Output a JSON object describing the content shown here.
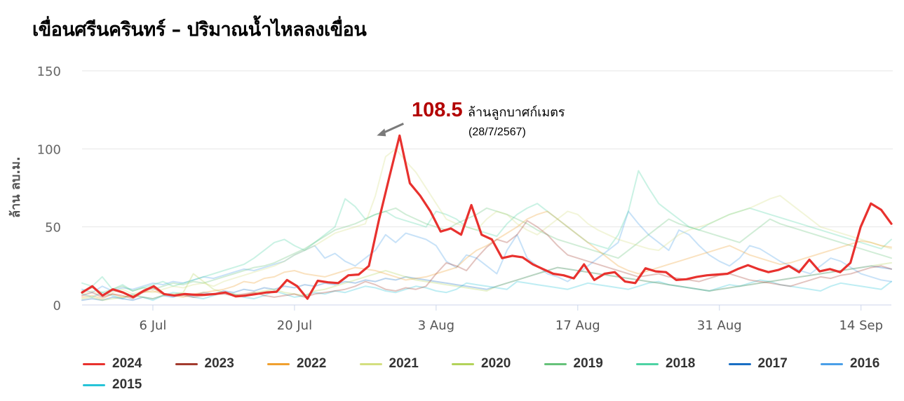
{
  "title": "เขื่อนศรีนครินทร์ – ปริมาณน้ำไหลลงเขื่อน",
  "chart_data": {
    "type": "line",
    "title": "เขื่อนศรีนครินทร์ – ปริมาณน้ำไหลลงเขื่อน",
    "xlabel": "",
    "ylabel": "ล้าน ลบ.ม.",
    "ylim": [
      0,
      150
    ],
    "yticks": [
      0,
      50,
      100,
      150
    ],
    "x_start": "2024-06-29",
    "x_end": "2024-09-17",
    "xticks": [
      {
        "label": "6 Jul",
        "date": "2024-07-06"
      },
      {
        "label": "20 Jul",
        "date": "2024-07-20"
      },
      {
        "label": "3 Aug",
        "date": "2024-08-03"
      },
      {
        "label": "17 Aug",
        "date": "2024-08-17"
      },
      {
        "label": "31 Aug",
        "date": "2024-08-31"
      },
      {
        "label": "14 Sep",
        "date": "2024-09-14"
      }
    ],
    "grid": true,
    "legend_position": "bottom",
    "annotation": {
      "value": "108.5",
      "unit": "ล้านลูกบาศก์เมตร",
      "date": "(28/7/2567)",
      "x": "2024-07-28",
      "y": 108.5
    },
    "series": [
      {
        "name": "2024",
        "color": "#e8312e",
        "values": [
          8,
          12,
          6,
          10,
          8,
          5,
          9,
          12,
          7,
          6,
          7,
          6.5,
          6.5,
          7,
          8,
          5.5,
          6,
          7,
          8,
          8.5,
          16,
          12,
          4,
          15.5,
          14.5,
          14,
          19,
          19.5,
          25,
          55,
          82,
          108.5,
          78,
          70,
          60,
          47,
          49,
          45,
          64,
          45,
          42,
          30,
          31.5,
          30.5,
          26,
          23,
          20,
          19,
          17,
          26,
          16,
          20,
          21,
          15,
          14,
          23.5,
          21.5,
          21,
          16,
          16.5,
          18,
          19,
          19.5,
          20,
          23,
          25.5,
          23,
          21,
          22.5,
          25,
          21,
          29,
          21.5,
          23,
          21,
          27,
          50,
          65,
          61,
          52
        ]
      },
      {
        "name": "2023",
        "color": "#a33b2f",
        "values": [
          6,
          8,
          5,
          7,
          6,
          4,
          8,
          11,
          7,
          6,
          6,
          5,
          6,
          7,
          7,
          6,
          7,
          8,
          6,
          5,
          6,
          7,
          5,
          7,
          8,
          9,
          10,
          12,
          15,
          13,
          10,
          9,
          11,
          10,
          12,
          20,
          27,
          25,
          22,
          30,
          37,
          42,
          40,
          45,
          54,
          50,
          45,
          38,
          32,
          30,
          28,
          26,
          24,
          22,
          20,
          18,
          19,
          20,
          18,
          17,
          16,
          15,
          17,
          19,
          20,
          18,
          16,
          15,
          14,
          13,
          12,
          14,
          16,
          18,
          17,
          19,
          20,
          22,
          24,
          25,
          23
        ]
      },
      {
        "name": "2022",
        "color": "#f0a030",
        "values": [
          5,
          6,
          4,
          7,
          5,
          6,
          8,
          9,
          7,
          6,
          5,
          7,
          8,
          9,
          10,
          12,
          15,
          14,
          17,
          18,
          21,
          22,
          20,
          19,
          18,
          20,
          22,
          24,
          23,
          22,
          20,
          18,
          16,
          17,
          18,
          20,
          22,
          24,
          30,
          35,
          38,
          42,
          46,
          50,
          55,
          58,
          60,
          55,
          50,
          45,
          40,
          35,
          30,
          25,
          22,
          20,
          22,
          24,
          26,
          28,
          30,
          32,
          34,
          36,
          38,
          35,
          32,
          30,
          28,
          26,
          27,
          29,
          31,
          33,
          35,
          37,
          39,
          41,
          40,
          38,
          37
        ]
      },
      {
        "name": "2021",
        "color": "#d4df80",
        "values": [
          7,
          9,
          6,
          8,
          10,
          7,
          9,
          8,
          10,
          12,
          11,
          13,
          14,
          12,
          15,
          17,
          19,
          21,
          23,
          25,
          28,
          32,
          35,
          38,
          42,
          46,
          48,
          50,
          52,
          70,
          95,
          100,
          92,
          85,
          75,
          65,
          55,
          52,
          50,
          48,
          55,
          60,
          58,
          52,
          48,
          45,
          50,
          55,
          60,
          58,
          52,
          48,
          45,
          42,
          40,
          38,
          36,
          35,
          40,
          45,
          48,
          50,
          52,
          55,
          58,
          60,
          62,
          65,
          68,
          70,
          65,
          60,
          55,
          50,
          48,
          46,
          44,
          42,
          40,
          38,
          36
        ]
      },
      {
        "name": "2020",
        "color": "#b3d35a",
        "values": [
          4,
          5,
          3,
          4,
          5,
          6,
          5,
          4,
          6,
          7,
          8,
          20,
          15,
          10,
          8,
          7,
          6,
          8,
          9,
          10,
          8,
          7,
          6,
          9,
          10,
          12,
          14,
          16,
          18,
          20,
          22,
          20,
          18,
          16,
          15,
          14,
          13,
          12,
          11,
          10,
          9,
          12,
          14,
          16,
          18,
          20,
          22,
          24,
          23,
          22,
          21,
          20,
          19,
          18,
          17,
          16,
          15,
          14,
          13,
          12,
          11,
          10,
          9,
          10,
          11,
          12,
          13,
          14,
          15,
          16,
          17,
          18,
          19,
          20,
          21,
          22,
          23,
          24,
          25,
          26,
          27
        ]
      },
      {
        "name": "2019",
        "color": "#66c27a",
        "values": [
          9,
          11,
          8,
          10,
          12,
          9,
          11,
          10,
          12,
          14,
          13,
          15,
          14,
          16,
          18,
          20,
          22,
          24,
          25,
          27,
          30,
          33,
          36,
          40,
          44,
          48,
          50,
          52,
          55,
          58,
          60,
          62,
          58,
          55,
          52,
          50,
          48,
          52,
          55,
          58,
          62,
          60,
          58,
          55,
          52,
          48,
          45,
          42,
          40,
          38,
          36,
          34,
          32,
          30,
          35,
          40,
          45,
          50,
          55,
          52,
          50,
          48,
          46,
          44,
          42,
          40,
          45,
          50,
          55,
          52,
          50,
          48,
          46,
          44,
          42,
          40,
          38,
          36,
          34,
          32,
          30
        ]
      },
      {
        "name": "2018",
        "color": "#4ed3a4",
        "values": [
          14,
          12,
          18,
          10,
          13,
          9,
          11,
          13,
          15,
          12,
          14,
          16,
          18,
          20,
          22,
          24,
          26,
          30,
          35,
          40,
          42,
          38,
          35,
          40,
          45,
          50,
          68,
          63,
          55,
          58,
          60,
          56,
          54,
          52,
          50,
          60,
          58,
          55,
          50,
          48,
          46,
          44,
          52,
          58,
          62,
          65,
          60,
          55,
          50,
          45,
          40,
          38,
          36,
          45,
          60,
          86,
          75,
          65,
          60,
          55,
          50,
          48,
          52,
          55,
          58,
          60,
          62,
          60,
          58,
          56,
          54,
          52,
          50,
          48,
          46,
          44,
          42,
          40,
          38,
          36,
          42
        ]
      },
      {
        "name": "2017",
        "color": "#1a6fc4",
        "values": [
          3,
          4,
          3,
          5,
          4,
          3,
          5,
          4,
          6,
          5,
          7,
          6,
          8,
          7,
          9,
          8,
          10,
          9,
          11,
          10,
          12,
          11,
          13,
          12,
          14,
          13,
          15,
          14,
          16,
          15,
          17,
          16,
          18,
          17,
          16,
          15,
          14,
          13,
          12,
          11,
          10,
          12,
          14,
          16,
          18,
          20,
          22,
          24,
          23,
          22,
          21,
          20,
          19,
          18,
          17,
          16,
          15,
          14,
          13,
          12,
          11,
          10,
          9,
          10,
          11,
          12,
          13,
          14,
          15,
          16,
          17,
          18,
          19,
          20,
          21,
          22,
          23,
          24,
          25,
          24,
          23
        ]
      },
      {
        "name": "2016",
        "color": "#4a9fe8",
        "values": [
          10,
          8,
          12,
          9,
          11,
          10,
          12,
          14,
          13,
          15,
          14,
          16,
          18,
          17,
          19,
          21,
          23,
          22,
          24,
          26,
          28,
          32,
          35,
          38,
          30,
          33,
          28,
          25,
          30,
          35,
          45,
          40,
          46,
          44,
          42,
          38,
          28,
          24,
          32,
          30,
          25,
          20,
          35,
          45,
          30,
          25,
          20,
          18,
          15,
          20,
          25,
          30,
          35,
          40,
          60,
          52,
          45,
          40,
          35,
          48,
          45,
          38,
          32,
          28,
          25,
          30,
          38,
          36,
          32,
          28,
          25,
          22,
          20,
          25,
          30,
          28,
          24,
          20,
          18,
          16,
          15
        ]
      },
      {
        "name": "2015",
        "color": "#27c4d8",
        "values": [
          7,
          5,
          8,
          6,
          4,
          7,
          5,
          3,
          6,
          8,
          7,
          5,
          4,
          6,
          8,
          7,
          5,
          4,
          6,
          9,
          7,
          5,
          6,
          8,
          7,
          9,
          8,
          10,
          12,
          11,
          9,
          8,
          10,
          12,
          11,
          9,
          8,
          10,
          14,
          13,
          12,
          11,
          10,
          15,
          14,
          13,
          12,
          11,
          10,
          12,
          14,
          13,
          12,
          11,
          10,
          12,
          14,
          15,
          13,
          12,
          11,
          10,
          9,
          11,
          13,
          12,
          14,
          16,
          15,
          13,
          12,
          11,
          10,
          9,
          12,
          14,
          13,
          12,
          11,
          10,
          15
        ]
      }
    ]
  }
}
